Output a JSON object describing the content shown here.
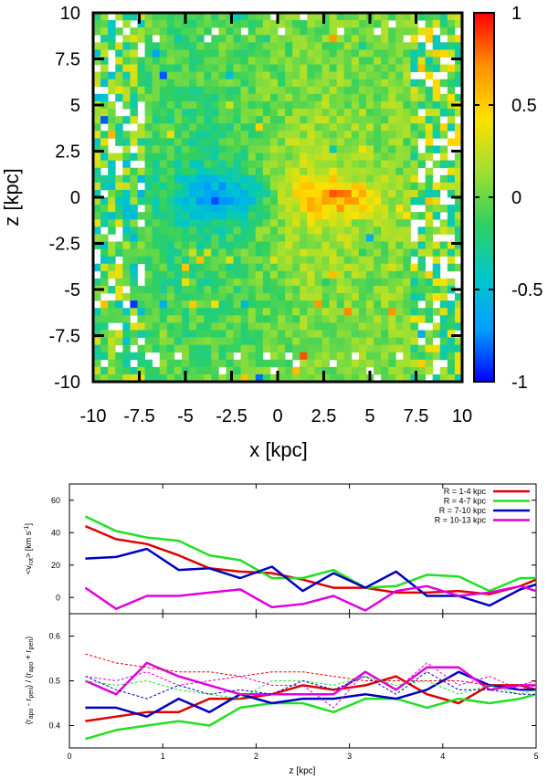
{
  "chart_data": [
    {
      "type": "heatmap",
      "xlabel": "x [kpc]",
      "ylabel": "z [kpc]",
      "xlim": [
        -10,
        10
      ],
      "ylim": [
        -10,
        10
      ],
      "xticks": [
        "-10",
        "-7.5",
        "-5",
        "-2.5",
        "0",
        "2.5",
        "5",
        "7.5",
        "10"
      ],
      "yticks": [
        "10",
        "7.5",
        "5",
        "2.5",
        "0",
        "-2.5",
        "-5",
        "-7.5",
        "-10"
      ],
      "colorbar": {
        "range": [
          -1,
          1
        ],
        "ticks": [
          "1",
          "0.5",
          "0",
          "-0.5",
          "-1"
        ],
        "colormap": [
          "#0000ff",
          "#00a0ff",
          "#00c8c8",
          "#30d060",
          "#a0e030",
          "#ffe000",
          "#ff9000",
          "#ff0000"
        ]
      },
      "grid_size": 50,
      "pattern": "noisy field near 0 (green); negative lobe (cyan/blue) around x=-2.5, z=0; positive lobe (yellow/orange) around x=2.5..4, z=0; empty (white) cells at the edges"
    },
    {
      "type": "line",
      "ylabel_parts": [
        "<v",
        "rot",
        "> [km s",
        "-1",
        "]"
      ],
      "xlim": [
        0,
        5
      ],
      "ylim": [
        -10,
        70
      ],
      "yticks": [
        "60",
        "40",
        "20",
        "0"
      ],
      "x": [
        0.17,
        0.5,
        0.83,
        1.17,
        1.5,
        1.83,
        2.17,
        2.5,
        2.83,
        3.17,
        3.5,
        3.83,
        4.17,
        4.5,
        4.83,
        5.0
      ],
      "series": [
        {
          "name": "R = 1-4 kpc",
          "color": "#e00000",
          "values": [
            44,
            36,
            33,
            26,
            18,
            16,
            15,
            11,
            6,
            6,
            3,
            3,
            4,
            2,
            7,
            11
          ]
        },
        {
          "name": "R = 4-7 kpc",
          "color": "#20e020",
          "values": [
            50,
            41,
            37,
            35,
            26,
            23,
            12,
            12,
            17,
            6,
            7,
            14,
            13,
            4,
            12,
            12
          ]
        },
        {
          "name": "R = 7-10 kpc",
          "color": "#0000c0",
          "values": [
            24,
            25,
            30,
            17,
            18,
            12,
            19,
            4,
            15,
            6,
            16,
            1,
            1,
            -5,
            5,
            8
          ]
        },
        {
          "name": "R = 10-13 kpc",
          "color": "#e000e0",
          "values": [
            6,
            -7,
            1,
            1,
            3,
            5,
            -6,
            -4,
            1,
            -8,
            4,
            7,
            1,
            3,
            7,
            4
          ]
        }
      ]
    },
    {
      "type": "line",
      "xlabel": "z [kpc]",
      "ylabel_parts": [
        "(r",
        "apo",
        " - r",
        "peri",
        ") / (r",
        "apo",
        " + r",
        "peri",
        ")"
      ],
      "xlim": [
        0,
        5
      ],
      "ylim": [
        0.35,
        0.65
      ],
      "xticks": [
        "0",
        "1",
        "2",
        "3",
        "4",
        "5"
      ],
      "yticks": [
        "0.6",
        "0.5",
        "0.4"
      ],
      "x": [
        0.17,
        0.5,
        0.83,
        1.17,
        1.5,
        1.83,
        2.17,
        2.5,
        2.83,
        3.17,
        3.5,
        3.83,
        4.17,
        4.5,
        4.83,
        5.0
      ],
      "series": [
        {
          "color": "#e00000",
          "style": "solid",
          "values": [
            0.41,
            0.42,
            0.43,
            0.43,
            0.46,
            0.46,
            0.47,
            0.49,
            0.48,
            0.49,
            0.51,
            0.47,
            0.45,
            0.49,
            0.49,
            0.48
          ]
        },
        {
          "color": "#20e020",
          "style": "solid",
          "values": [
            0.37,
            0.39,
            0.4,
            0.41,
            0.4,
            0.44,
            0.45,
            0.45,
            0.43,
            0.46,
            0.46,
            0.44,
            0.46,
            0.45,
            0.46,
            0.47
          ]
        },
        {
          "color": "#0000c0",
          "style": "solid",
          "values": [
            0.44,
            0.44,
            0.42,
            0.46,
            0.43,
            0.47,
            0.45,
            0.46,
            0.46,
            0.47,
            0.46,
            0.48,
            0.52,
            0.49,
            0.48,
            0.48
          ]
        },
        {
          "color": "#e000e0",
          "style": "solid",
          "values": [
            0.5,
            0.47,
            0.54,
            0.51,
            0.49,
            0.47,
            0.47,
            0.47,
            0.47,
            0.52,
            0.48,
            0.53,
            0.53,
            0.48,
            0.49,
            0.49
          ]
        },
        {
          "color": "#e00000",
          "style": "dashed",
          "values": [
            0.56,
            0.54,
            0.53,
            0.52,
            0.52,
            0.51,
            0.52,
            0.52,
            0.51,
            0.5,
            0.5,
            0.5,
            0.5,
            0.49,
            0.49,
            0.5
          ]
        },
        {
          "color": "#20e020",
          "style": "dashed",
          "values": [
            0.5,
            0.49,
            0.5,
            0.48,
            0.47,
            0.46,
            0.5,
            0.5,
            0.49,
            0.51,
            0.49,
            0.5,
            0.47,
            0.49,
            0.47,
            0.48
          ]
        },
        {
          "color": "#0000c0",
          "style": "dashed",
          "values": [
            0.51,
            0.48,
            0.46,
            0.49,
            0.47,
            0.48,
            0.47,
            0.5,
            0.48,
            0.51,
            0.47,
            0.52,
            0.48,
            0.48,
            0.47,
            0.47
          ]
        },
        {
          "color": "#e000e0",
          "style": "dashed",
          "values": [
            0.51,
            0.5,
            0.52,
            0.49,
            0.5,
            0.51,
            0.49,
            0.49,
            0.44,
            0.52,
            0.48,
            0.54,
            0.49,
            0.51,
            0.48,
            0.49
          ]
        }
      ]
    }
  ]
}
